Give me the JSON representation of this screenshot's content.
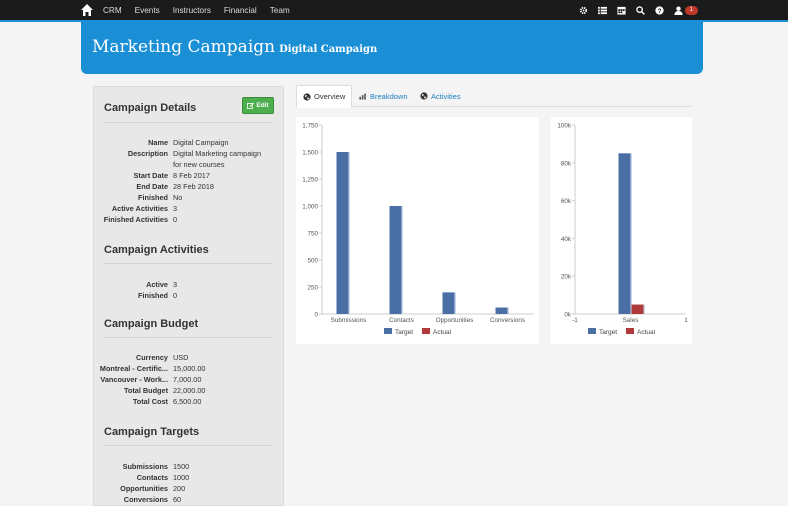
{
  "nav": {
    "links": [
      "CRM",
      "Events",
      "Instructors",
      "Financial",
      "Team"
    ],
    "right_icons": [
      "gear-icon",
      "list-icon",
      "calendar-icon",
      "search-icon",
      "help-icon",
      "user-icon"
    ],
    "notification_count": "1"
  },
  "header": {
    "title": "Marketing Campaign",
    "subtitle": "Digital Campaign"
  },
  "sidebar": {
    "details": {
      "title": "Campaign Details",
      "edit_label": "Edit",
      "rows": [
        {
          "key": "Name",
          "val": "Digital Campaign"
        },
        {
          "key": "Description",
          "val": "Digital Marketing campaign"
        },
        {
          "key": "",
          "val": "for new courses"
        },
        {
          "key": "Start Date",
          "val": "8 Feb 2017"
        },
        {
          "key": "End Date",
          "val": "28 Feb 2018"
        },
        {
          "key": "Finished",
          "val": "No"
        },
        {
          "key": "Active Activities",
          "val": "3"
        },
        {
          "key": "Finished Activities",
          "val": "0"
        }
      ]
    },
    "activities": {
      "title": "Campaign Activities",
      "rows": [
        {
          "key": "Active",
          "val": "3"
        },
        {
          "key": "Finished",
          "val": "0"
        }
      ]
    },
    "budget": {
      "title": "Campaign Budget",
      "rows": [
        {
          "key": "Currency",
          "val": "USD"
        },
        {
          "key": "Montreal - Certific...",
          "val": "15,000.00"
        },
        {
          "key": "Vancouver - Work...",
          "val": "7,000.00"
        },
        {
          "key": "Total Budget",
          "val": "22,000.00"
        },
        {
          "key": "Total Cost",
          "val": "6,500.00"
        }
      ]
    },
    "targets": {
      "title": "Campaign Targets",
      "rows": [
        {
          "key": "Submissions",
          "val": "1500"
        },
        {
          "key": "Contacts",
          "val": "1000"
        },
        {
          "key": "Opportunities",
          "val": "200"
        },
        {
          "key": "Conversions",
          "val": "60"
        }
      ]
    }
  },
  "tabs": [
    {
      "label": "Overview",
      "icon": "globe-icon",
      "active": true
    },
    {
      "label": "Breakdown",
      "icon": "bar-chart-icon",
      "active": false
    },
    {
      "label": "Activities",
      "icon": "globe-icon",
      "active": false
    }
  ],
  "colors": {
    "target": "#4a6fa5",
    "actual": "#b03a3a",
    "brand": "#1a8fd6"
  },
  "chart_data": [
    {
      "type": "bar",
      "categories": [
        "Submissions",
        "Contacts",
        "Opportunities",
        "Conversions"
      ],
      "series": [
        {
          "name": "Target",
          "values": [
            1500,
            1000,
            200,
            60
          ]
        },
        {
          "name": "Actual",
          "values": [
            0,
            0,
            0,
            0
          ]
        }
      ],
      "yticks": [
        "0",
        "250",
        "500",
        "750",
        "1,000",
        "1,250",
        "1,500",
        "1,750"
      ],
      "ylim": [
        0,
        1750
      ],
      "legend": "bottom"
    },
    {
      "type": "bar",
      "categories": [
        "Sales"
      ],
      "xticks": [
        "-1",
        "Sales",
        "1"
      ],
      "series": [
        {
          "name": "Target",
          "values": [
            85000
          ]
        },
        {
          "name": "Actual",
          "values": [
            5000
          ]
        }
      ],
      "yticks": [
        "0k",
        "20k",
        "40k",
        "60k",
        "80k",
        "100k"
      ],
      "ylim": [
        0,
        100000
      ],
      "legend": "bottom"
    }
  ]
}
